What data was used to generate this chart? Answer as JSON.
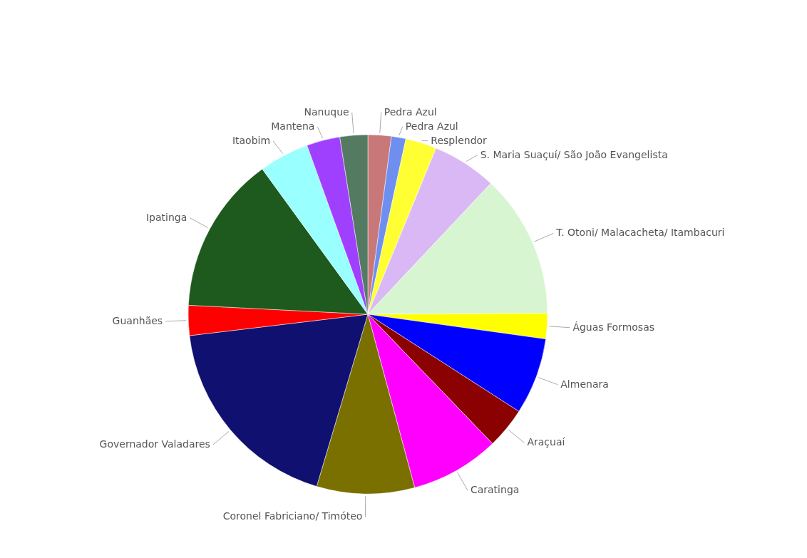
{
  "chart_data": {
    "type": "pie",
    "categories": [
      "Pedra Azul",
      "Pedra Azul",
      "Resplendor",
      "S. Maria Suaçuí/ São João Evangelista",
      "T. Otoni/ Malacacheta/ Itambacuri",
      "Águas Formosas",
      "Almenara",
      "Araçuaí",
      "Caratinga",
      "Coronel Fabriciano/ Timóteo",
      "Governador Valadares",
      "Guanhães",
      "Ipatinga",
      "Itaobim",
      "Mantena",
      "Nanuque"
    ],
    "values": [
      2.1,
      1.3,
      2.8,
      5.8,
      12.9,
      2.3,
      6.9,
      3.7,
      8.0,
      8.8,
      18.5,
      2.7,
      14.2,
      4.5,
      3.0,
      2.5
    ],
    "colors": [
      "#c87878",
      "#6f8ff0",
      "#ffff33",
      "#d9b8f5",
      "#d6f5d0",
      "#ffff00",
      "#0000ff",
      "#8b0000",
      "#ff00ff",
      "#7a7000",
      "#101070",
      "#ff0000",
      "#1e5a1e",
      "#99ffff",
      "#a040ff",
      "#557a62"
    ]
  }
}
